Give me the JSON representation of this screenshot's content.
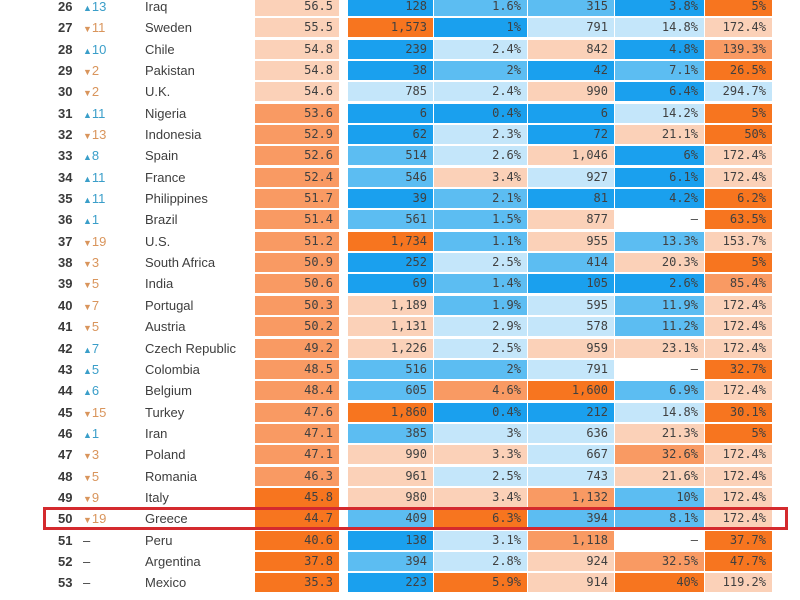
{
  "palette": {
    "deep_blue": "#1aa0ee",
    "mid_blue": "#5cbdf2",
    "light_blue": "#c4e6fa",
    "blank": "#ffffff",
    "light_orange": "#fbd1b8",
    "mid_orange": "#f99a63",
    "deep_orange": "#f7751f",
    "highlight_border": "#d42a2e",
    "up_color": "#3a9ec9",
    "down_color": "#d9955c"
  },
  "highlighted_country": "Greece",
  "rows": [
    {
      "rank": "26",
      "dir": "up",
      "change": "13",
      "country": "Iraq",
      "cells": [
        {
          "v": "56.5",
          "c": "lo"
        },
        {
          "v": "128",
          "c": "db"
        },
        {
          "v": "1.6%",
          "c": "mb"
        },
        {
          "v": "315",
          "c": "mb"
        },
        {
          "v": "3.8%",
          "c": "db"
        },
        {
          "v": "5%",
          "c": "do"
        }
      ]
    },
    {
      "rank": "27",
      "dir": "down",
      "change": "11",
      "country": "Sweden",
      "cells": [
        {
          "v": "55.5",
          "c": "lo"
        },
        {
          "v": "1,573",
          "c": "do"
        },
        {
          "v": "1%",
          "c": "db"
        },
        {
          "v": "791",
          "c": "lb"
        },
        {
          "v": "14.8%",
          "c": "lb"
        },
        {
          "v": "172.4%",
          "c": "lo"
        }
      ]
    },
    {
      "rank": "28",
      "dir": "up",
      "change": "10",
      "country": "Chile",
      "cells": [
        {
          "v": "54.8",
          "c": "lo"
        },
        {
          "v": "239",
          "c": "db"
        },
        {
          "v": "2.4%",
          "c": "lb"
        },
        {
          "v": "842",
          "c": "lo"
        },
        {
          "v": "4.8%",
          "c": "db"
        },
        {
          "v": "139.3%",
          "c": "mo"
        }
      ]
    },
    {
      "rank": "29",
      "dir": "down",
      "change": "2",
      "country": "Pakistan",
      "cells": [
        {
          "v": "54.8",
          "c": "lo"
        },
        {
          "v": "38",
          "c": "db"
        },
        {
          "v": "2%",
          "c": "mb"
        },
        {
          "v": "42",
          "c": "db"
        },
        {
          "v": "7.1%",
          "c": "mb"
        },
        {
          "v": "26.5%",
          "c": "do"
        }
      ]
    },
    {
      "rank": "30",
      "dir": "down",
      "change": "2",
      "country": "U.K.",
      "cells": [
        {
          "v": "54.6",
          "c": "lo"
        },
        {
          "v": "785",
          "c": "lb"
        },
        {
          "v": "2.4%",
          "c": "lb"
        },
        {
          "v": "990",
          "c": "lo"
        },
        {
          "v": "6.4%",
          "c": "db"
        },
        {
          "v": "294.7%",
          "c": "lb"
        }
      ]
    },
    {
      "rank": "31",
      "dir": "up",
      "change": "11",
      "country": "Nigeria",
      "cells": [
        {
          "v": "53.6",
          "c": "mo"
        },
        {
          "v": "6",
          "c": "db"
        },
        {
          "v": "0.4%",
          "c": "db"
        },
        {
          "v": "6",
          "c": "db"
        },
        {
          "v": "14.2%",
          "c": "lb"
        },
        {
          "v": "5%",
          "c": "do"
        }
      ]
    },
    {
      "rank": "32",
      "dir": "down",
      "change": "13",
      "country": "Indonesia",
      "cells": [
        {
          "v": "52.9",
          "c": "mo"
        },
        {
          "v": "62",
          "c": "db"
        },
        {
          "v": "2.3%",
          "c": "lb"
        },
        {
          "v": "72",
          "c": "db"
        },
        {
          "v": "21.1%",
          "c": "lo"
        },
        {
          "v": "50%",
          "c": "do"
        }
      ]
    },
    {
      "rank": "33",
      "dir": "up",
      "change": "8",
      "country": "Spain",
      "cells": [
        {
          "v": "52.6",
          "c": "mo"
        },
        {
          "v": "514",
          "c": "mb"
        },
        {
          "v": "2.6%",
          "c": "lb"
        },
        {
          "v": "1,046",
          "c": "lo"
        },
        {
          "v": "6%",
          "c": "db"
        },
        {
          "v": "172.4%",
          "c": "lo"
        }
      ]
    },
    {
      "rank": "34",
      "dir": "up",
      "change": "11",
      "country": "France",
      "cells": [
        {
          "v": "52.4",
          "c": "mo"
        },
        {
          "v": "546",
          "c": "mb"
        },
        {
          "v": "3.4%",
          "c": "lo"
        },
        {
          "v": "927",
          "c": "lb"
        },
        {
          "v": "6.1%",
          "c": "db"
        },
        {
          "v": "172.4%",
          "c": "lo"
        }
      ]
    },
    {
      "rank": "35",
      "dir": "up",
      "change": "11",
      "country": "Philippines",
      "cells": [
        {
          "v": "51.7",
          "c": "mo"
        },
        {
          "v": "39",
          "c": "db"
        },
        {
          "v": "2.1%",
          "c": "mb"
        },
        {
          "v": "81",
          "c": "db"
        },
        {
          "v": "4.2%",
          "c": "db"
        },
        {
          "v": "6.2%",
          "c": "do"
        }
      ]
    },
    {
      "rank": "36",
      "dir": "up",
      "change": "1",
      "country": "Brazil",
      "cells": [
        {
          "v": "51.4",
          "c": "mo"
        },
        {
          "v": "561",
          "c": "mb"
        },
        {
          "v": "1.5%",
          "c": "mb"
        },
        {
          "v": "877",
          "c": "lo"
        },
        {
          "v": "–",
          "c": "bl"
        },
        {
          "v": "63.5%",
          "c": "do"
        }
      ]
    },
    {
      "rank": "37",
      "dir": "down",
      "change": "19",
      "country": "U.S.",
      "cells": [
        {
          "v": "51.2",
          "c": "mo"
        },
        {
          "v": "1,734",
          "c": "do"
        },
        {
          "v": "1.1%",
          "c": "mb"
        },
        {
          "v": "955",
          "c": "lo"
        },
        {
          "v": "13.3%",
          "c": "mb"
        },
        {
          "v": "153.7%",
          "c": "lo"
        }
      ]
    },
    {
      "rank": "38",
      "dir": "down",
      "change": "3",
      "country": "South Africa",
      "cells": [
        {
          "v": "50.9",
          "c": "mo"
        },
        {
          "v": "252",
          "c": "db"
        },
        {
          "v": "2.5%",
          "c": "lb"
        },
        {
          "v": "414",
          "c": "mb"
        },
        {
          "v": "20.3%",
          "c": "lo"
        },
        {
          "v": "5%",
          "c": "do"
        }
      ]
    },
    {
      "rank": "39",
      "dir": "down",
      "change": "5",
      "country": "India",
      "cells": [
        {
          "v": "50.6",
          "c": "mo"
        },
        {
          "v": "69",
          "c": "db"
        },
        {
          "v": "1.4%",
          "c": "mb"
        },
        {
          "v": "105",
          "c": "db"
        },
        {
          "v": "2.6%",
          "c": "db"
        },
        {
          "v": "85.4%",
          "c": "mo"
        }
      ]
    },
    {
      "rank": "40",
      "dir": "down",
      "change": "7",
      "country": "Portugal",
      "cells": [
        {
          "v": "50.3",
          "c": "mo"
        },
        {
          "v": "1,189",
          "c": "lo"
        },
        {
          "v": "1.9%",
          "c": "mb"
        },
        {
          "v": "595",
          "c": "lb"
        },
        {
          "v": "11.9%",
          "c": "mb"
        },
        {
          "v": "172.4%",
          "c": "lo"
        }
      ]
    },
    {
      "rank": "41",
      "dir": "down",
      "change": "5",
      "country": "Austria",
      "cells": [
        {
          "v": "50.2",
          "c": "mo"
        },
        {
          "v": "1,131",
          "c": "lo"
        },
        {
          "v": "2.9%",
          "c": "lb"
        },
        {
          "v": "578",
          "c": "lb"
        },
        {
          "v": "11.2%",
          "c": "mb"
        },
        {
          "v": "172.4%",
          "c": "lo"
        }
      ]
    },
    {
      "rank": "42",
      "dir": "up",
      "change": "7",
      "country": "Czech Republic",
      "cells": [
        {
          "v": "49.2",
          "c": "mo"
        },
        {
          "v": "1,226",
          "c": "lo"
        },
        {
          "v": "2.5%",
          "c": "lb"
        },
        {
          "v": "959",
          "c": "lo"
        },
        {
          "v": "23.1%",
          "c": "lo"
        },
        {
          "v": "172.4%",
          "c": "lo"
        }
      ]
    },
    {
      "rank": "43",
      "dir": "up",
      "change": "5",
      "country": "Colombia",
      "cells": [
        {
          "v": "48.5",
          "c": "mo"
        },
        {
          "v": "516",
          "c": "mb"
        },
        {
          "v": "2%",
          "c": "mb"
        },
        {
          "v": "791",
          "c": "lb"
        },
        {
          "v": "–",
          "c": "bl"
        },
        {
          "v": "32.7%",
          "c": "do"
        }
      ]
    },
    {
      "rank": "44",
      "dir": "up",
      "change": "6",
      "country": "Belgium",
      "cells": [
        {
          "v": "48.4",
          "c": "mo"
        },
        {
          "v": "605",
          "c": "mb"
        },
        {
          "v": "4.6%",
          "c": "mo"
        },
        {
          "v": "1,600",
          "c": "do"
        },
        {
          "v": "6.9%",
          "c": "mb"
        },
        {
          "v": "172.4%",
          "c": "lo"
        }
      ]
    },
    {
      "rank": "45",
      "dir": "down",
      "change": "15",
      "country": "Turkey",
      "cells": [
        {
          "v": "47.6",
          "c": "mo"
        },
        {
          "v": "1,860",
          "c": "do"
        },
        {
          "v": "0.4%",
          "c": "db"
        },
        {
          "v": "212",
          "c": "db"
        },
        {
          "v": "14.8%",
          "c": "lb"
        },
        {
          "v": "30.1%",
          "c": "do"
        }
      ]
    },
    {
      "rank": "46",
      "dir": "up",
      "change": "1",
      "country": "Iran",
      "cells": [
        {
          "v": "47.1",
          "c": "mo"
        },
        {
          "v": "385",
          "c": "mb"
        },
        {
          "v": "3%",
          "c": "lb"
        },
        {
          "v": "636",
          "c": "lb"
        },
        {
          "v": "21.3%",
          "c": "lo"
        },
        {
          "v": "5%",
          "c": "do"
        }
      ]
    },
    {
      "rank": "47",
      "dir": "down",
      "change": "3",
      "country": "Poland",
      "cells": [
        {
          "v": "47.1",
          "c": "mo"
        },
        {
          "v": "990",
          "c": "lo"
        },
        {
          "v": "3.3%",
          "c": "lo"
        },
        {
          "v": "667",
          "c": "lb"
        },
        {
          "v": "32.6%",
          "c": "mo"
        },
        {
          "v": "172.4%",
          "c": "lo"
        }
      ]
    },
    {
      "rank": "48",
      "dir": "down",
      "change": "5",
      "country": "Romania",
      "cells": [
        {
          "v": "46.3",
          "c": "mo"
        },
        {
          "v": "961",
          "c": "lo"
        },
        {
          "v": "2.5%",
          "c": "lb"
        },
        {
          "v": "743",
          "c": "lb"
        },
        {
          "v": "21.6%",
          "c": "lo"
        },
        {
          "v": "172.4%",
          "c": "lo"
        }
      ]
    },
    {
      "rank": "49",
      "dir": "down",
      "change": "9",
      "country": "Italy",
      "cells": [
        {
          "v": "45.8",
          "c": "do"
        },
        {
          "v": "980",
          "c": "lo"
        },
        {
          "v": "3.4%",
          "c": "lo"
        },
        {
          "v": "1,132",
          "c": "mo"
        },
        {
          "v": "10%",
          "c": "mb"
        },
        {
          "v": "172.4%",
          "c": "lo"
        }
      ]
    },
    {
      "rank": "50",
      "dir": "down",
      "change": "19",
      "country": "Greece",
      "cells": [
        {
          "v": "44.7",
          "c": "do"
        },
        {
          "v": "409",
          "c": "mb"
        },
        {
          "v": "6.3%",
          "c": "do"
        },
        {
          "v": "394",
          "c": "mb"
        },
        {
          "v": "8.1%",
          "c": "mb"
        },
        {
          "v": "172.4%",
          "c": "lo"
        }
      ]
    },
    {
      "rank": "51",
      "dir": "none",
      "change": "–",
      "country": "Peru",
      "cells": [
        {
          "v": "40.6",
          "c": "do"
        },
        {
          "v": "138",
          "c": "db"
        },
        {
          "v": "3.1%",
          "c": "lb"
        },
        {
          "v": "1,118",
          "c": "mo"
        },
        {
          "v": "–",
          "c": "bl"
        },
        {
          "v": "37.7%",
          "c": "do"
        }
      ]
    },
    {
      "rank": "52",
      "dir": "none",
      "change": "–",
      "country": "Argentina",
      "cells": [
        {
          "v": "37.8",
          "c": "do"
        },
        {
          "v": "394",
          "c": "mb"
        },
        {
          "v": "2.8%",
          "c": "lb"
        },
        {
          "v": "924",
          "c": "lo"
        },
        {
          "v": "32.5%",
          "c": "mo"
        },
        {
          "v": "47.7%",
          "c": "do"
        }
      ]
    },
    {
      "rank": "53",
      "dir": "none",
      "change": "–",
      "country": "Mexico",
      "cells": [
        {
          "v": "35.3",
          "c": "do"
        },
        {
          "v": "223",
          "c": "db"
        },
        {
          "v": "5.9%",
          "c": "do"
        },
        {
          "v": "914",
          "c": "lo"
        },
        {
          "v": "40%",
          "c": "do"
        },
        {
          "v": "119.2%",
          "c": "lo"
        }
      ]
    }
  ]
}
